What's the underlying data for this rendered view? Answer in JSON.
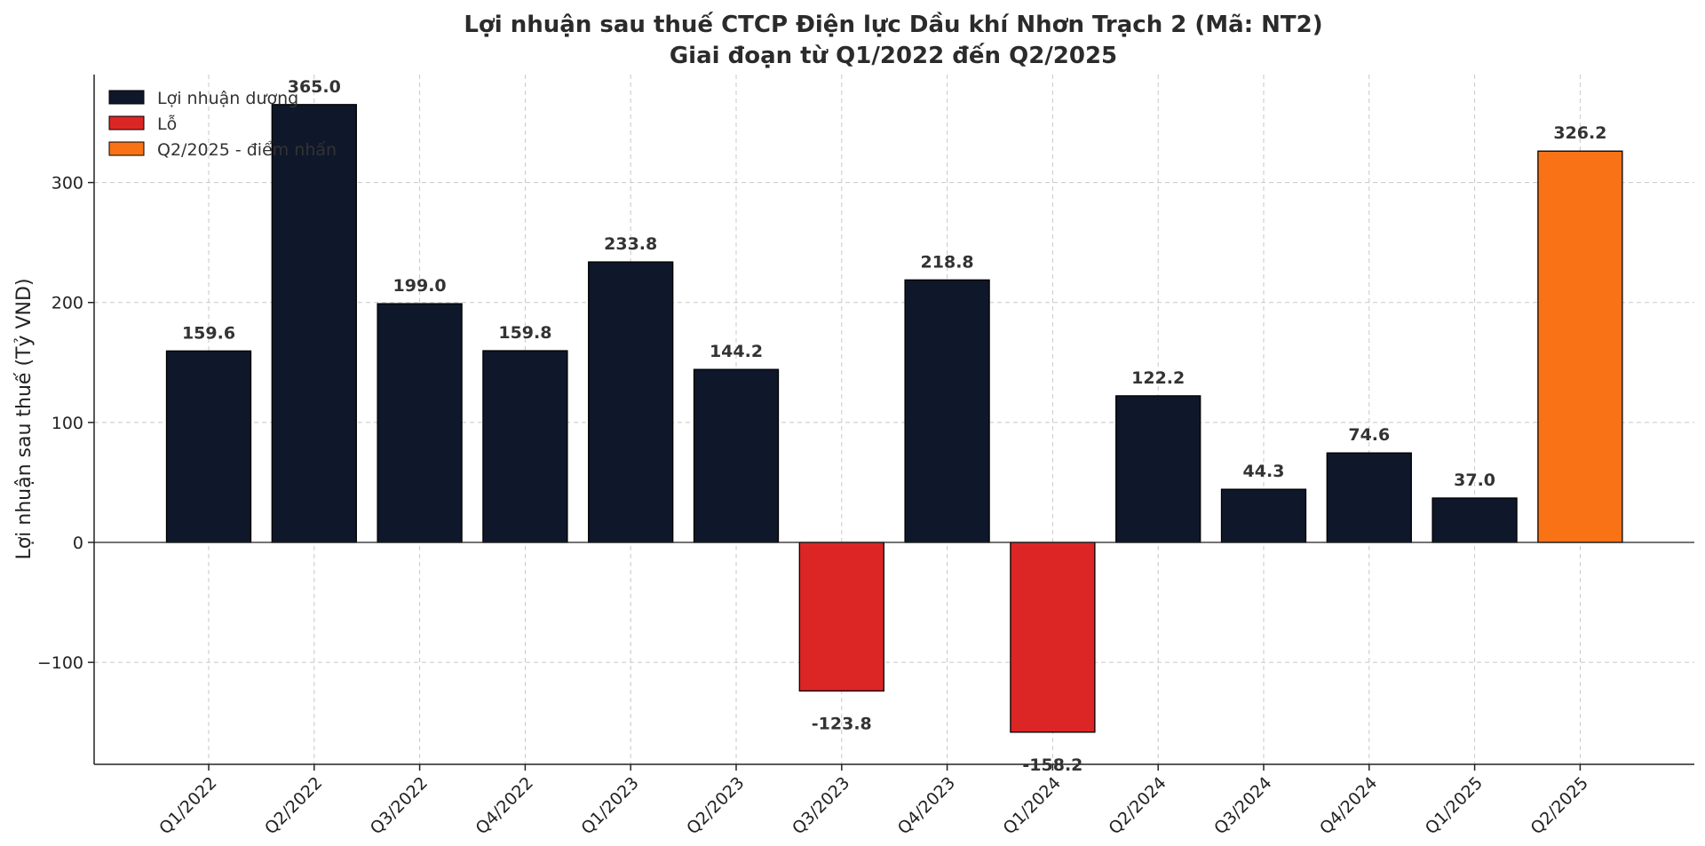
{
  "chart_data": {
    "type": "bar",
    "title": "Lợi nhuận sau thuế CTCP Điện lực Dầu khí Nhơn Trạch 2 (Mã: NT2)",
    "subtitle": "Giai đoạn từ Q1/2022 đến Q2/2025",
    "xlabel": "",
    "ylabel": "Lợi nhuận sau thuế (Tỷ VND)",
    "categories": [
      "Q1/2022",
      "Q2/2022",
      "Q3/2022",
      "Q4/2022",
      "Q1/2023",
      "Q2/2023",
      "Q3/2023",
      "Q4/2023",
      "Q1/2024",
      "Q2/2024",
      "Q3/2024",
      "Q4/2024",
      "Q1/2025",
      "Q2/2025"
    ],
    "values": [
      159.6,
      365.0,
      199.0,
      159.8,
      233.8,
      144.2,
      -123.8,
      218.8,
      -158.2,
      122.2,
      44.3,
      74.6,
      37.0,
      326.2
    ],
    "data_labels": [
      "159.6",
      "365.0",
      "199.0",
      "159.8",
      "233.8",
      "144.2",
      "-123.8",
      "218.8",
      "-158.2",
      "122.2",
      "44.3",
      "74.6",
      "37.0",
      "326.2"
    ],
    "bar_groups": [
      "positive",
      "positive",
      "positive",
      "positive",
      "positive",
      "positive",
      "loss",
      "positive",
      "loss",
      "positive",
      "positive",
      "positive",
      "positive",
      "highlight"
    ],
    "legend": [
      {
        "key": "positive",
        "label": "Lợi nhuận dương",
        "color": "#0f172a"
      },
      {
        "key": "loss",
        "label": "Lỗ",
        "color": "#dc2626"
      },
      {
        "key": "highlight",
        "label": "Q2/2025 - điểm nhấn",
        "color": "#f97316"
      }
    ],
    "legend_position": "top-left",
    "ylim": [
      -185,
      390
    ],
    "yticks": [
      -100,
      0,
      100,
      200,
      300
    ],
    "ytick_labels": [
      "−100",
      "0",
      "100",
      "200",
      "300"
    ],
    "grid": true
  }
}
